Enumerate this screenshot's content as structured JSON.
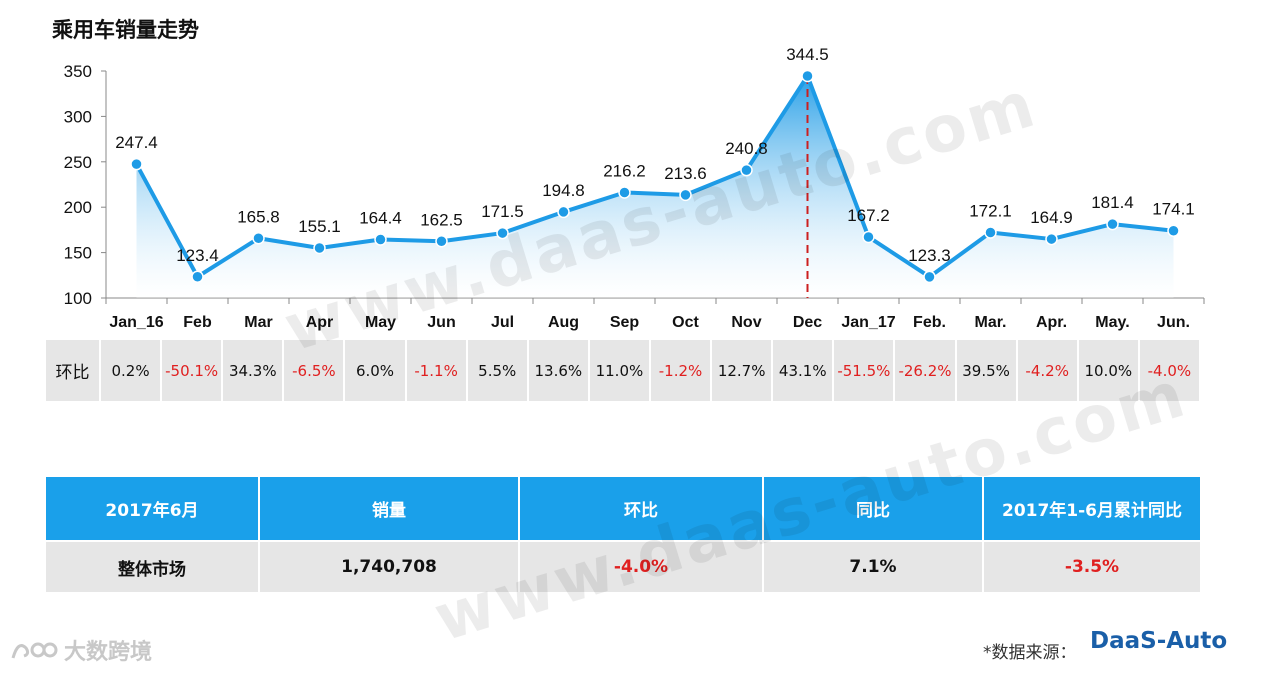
{
  "chart_data": {
    "type": "area",
    "title": "乘用车销量走势",
    "categories": [
      "Jan_16",
      "Feb",
      "Mar",
      "Apr",
      "May",
      "Jun",
      "Jul",
      "Aug",
      "Sep",
      "Oct",
      "Nov",
      "Dec",
      "Jan_17",
      "Feb.",
      "Mar.",
      "Apr.",
      "May.",
      "Jun."
    ],
    "values": [
      247.4,
      123.4,
      165.8,
      155.1,
      164.4,
      162.5,
      171.5,
      194.8,
      216.2,
      213.6,
      240.8,
      344.5,
      167.2,
      123.3,
      172.1,
      164.9,
      181.4,
      174.1
    ],
    "value_labels": [
      "247.4",
      "123.4",
      "165.8",
      "155.1",
      "164.4",
      "162.5",
      "171.5",
      "194.8",
      "216.2",
      "213.6",
      "240.8",
      "344.5",
      "167.2",
      "123.3",
      "172.1",
      "164.9",
      "181.4",
      "174.1"
    ],
    "ylim": [
      100,
      350
    ],
    "yticks": [
      "350",
      "300",
      "250",
      "200",
      "150",
      "100"
    ],
    "ytick_values": [
      350,
      300,
      250,
      200,
      150,
      100
    ],
    "line_color": "#1e9be6",
    "fill_top_color": "#1e9be6",
    "fill_bottom_color": "#ffffff",
    "marker_line_color": "#cc1f1f",
    "grid": false
  },
  "mom_row": {
    "label": "环比",
    "values": [
      "0.2%",
      "-50.1%",
      "34.3%",
      "-6.5%",
      "6.0%",
      "-1.1%",
      "5.5%",
      "13.6%",
      "11.0%",
      "-1.2%",
      "12.7%",
      "43.1%",
      "-51.5%",
      "-26.2%",
      "39.5%",
      "-4.2%",
      "10.0%",
      "-4.0%"
    ],
    "negative_color": "#e02020"
  },
  "summary_table": {
    "headers": [
      "2017年6月",
      "销量",
      "环比",
      "同比",
      "2017年1-6月累计同比"
    ],
    "row": [
      "整体市场",
      "1,740,708",
      "-4.0%",
      "7.1%",
      "-3.5%"
    ],
    "header_color": "#1aa0ea"
  },
  "watermark": "www.daas-auto.com",
  "footer": {
    "brand_left": "大数跨境",
    "source_label": "*数据来源：",
    "logo_text": "DaaS-Auto"
  }
}
